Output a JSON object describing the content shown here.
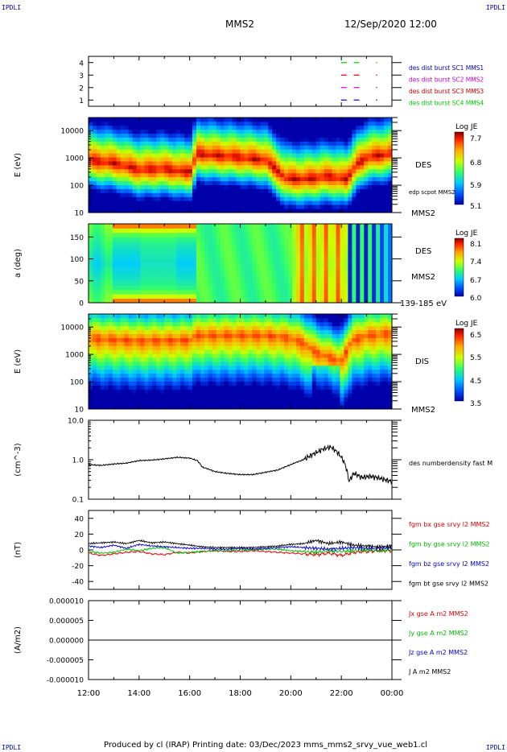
{
  "header": {
    "corner_left_top": "IPDLI",
    "corner_right_top": "IPDLI",
    "corner_left_bottom": "IPDLI",
    "corner_right_bottom": "IPDLI",
    "spacecraft": "MMS2",
    "datetime": "12/Sep/2020 12:00"
  },
  "footer": {
    "text": "Produced by cl (IRAP)   Printing date: 03/Dec/2023   mms_mms2_srvy_vue_web1.cl"
  },
  "colors": {
    "mms1": "#0000cc",
    "mms2": "#cc00cc",
    "mms3": "#cc0000",
    "mms4": "#00cc00",
    "bx": "#dd0000",
    "by": "#00bb00",
    "bz": "#0000cc",
    "bt": "#000000"
  },
  "chart_data": [
    {
      "type": "line",
      "name": "burst-flags",
      "ylim": [
        0.5,
        4.5
      ],
      "yticks": [
        "1",
        "2",
        "3",
        "4"
      ],
      "legend": [
        {
          "label": "des dist burst SC1 MMS1",
          "color": "#0000cc"
        },
        {
          "label": "des dist burst SC2 MMS2",
          "color": "#cc00cc"
        },
        {
          "label": "des dist burst SC3 MMS3",
          "color": "#cc0000"
        },
        {
          "label": "des dist burst SC4 MMS4",
          "color": "#00cc00"
        }
      ],
      "series": [
        {
          "level": 4,
          "color": "#00cc00",
          "x": [
            22.1,
            22.6,
            23.4
          ]
        },
        {
          "level": 3,
          "color": "#cc0000",
          "x": [
            22.1,
            22.6,
            23.4
          ]
        },
        {
          "level": 2,
          "color": "#cc00cc",
          "x": [
            22.1,
            22.6,
            23.4
          ]
        },
        {
          "level": 1,
          "color": "#0000cc",
          "x": [
            22.1,
            22.6,
            23.4
          ]
        }
      ]
    },
    {
      "type": "heatmap",
      "name": "des-energy",
      "ylabel": "E (eV)",
      "yscale": "log",
      "ylim": [
        10,
        30000
      ],
      "yticks": [
        "10",
        "100",
        "1000",
        "10000"
      ],
      "label_right": "DES",
      "label_right2": "edp scpot MMS2",
      "label_bottom": "MMS2",
      "colorbar": {
        "title": "Log JE",
        "ticks": [
          "7.7",
          "6.8",
          "5.9",
          "5.1"
        ],
        "min": 5.1,
        "max": 7.7
      }
    },
    {
      "type": "heatmap",
      "name": "des-pitch",
      "ylabel": "a (deg)",
      "ylim": [
        0,
        180
      ],
      "yticks": [
        "0",
        "50",
        "100",
        "150"
      ],
      "label_right": "DES",
      "label_right2": "MMS2",
      "label_bottom": "139-185 eV",
      "colorbar": {
        "title": "Log JE",
        "ticks": [
          "8.1",
          "7.4",
          "6.7",
          "6.0"
        ],
        "min": 6.0,
        "max": 8.1
      }
    },
    {
      "type": "heatmap",
      "name": "dis-energy",
      "ylabel": "E (eV)",
      "yscale": "log",
      "ylim": [
        10,
        30000
      ],
      "yticks": [
        "10",
        "100",
        "1000",
        "10000"
      ],
      "label_right": "DIS",
      "label_bottom": "MMS2",
      "colorbar": {
        "title": "Log JE",
        "ticks": [
          "6.5",
          "5.5",
          "4.5",
          "3.5"
        ],
        "min": 3.5,
        "max": 6.5
      }
    },
    {
      "type": "line",
      "name": "density",
      "ylabel": "(cm^-3)",
      "yscale": "log",
      "ylim": [
        0.1,
        10
      ],
      "yticks": [
        "0.1",
        "1.0",
        "10.0"
      ],
      "legend": [
        {
          "label": "des numberdensity fast M",
          "color": "#000000"
        }
      ],
      "series": [
        {
          "name": "des numberdensity fast M",
          "x": [
            12.0,
            12.5,
            13.0,
            13.5,
            14.0,
            14.5,
            15.0,
            15.5,
            16.0,
            16.3,
            16.5,
            17.0,
            17.5,
            18.0,
            18.5,
            19.0,
            19.5,
            20.0,
            20.5,
            21.0,
            21.3,
            21.6,
            21.9,
            22.1,
            22.3,
            22.5,
            22.8,
            23.2,
            23.6,
            24.0
          ],
          "y": [
            0.75,
            0.72,
            0.78,
            0.82,
            0.95,
            0.98,
            1.05,
            1.15,
            1.1,
            0.95,
            0.65,
            0.5,
            0.45,
            0.42,
            0.42,
            0.48,
            0.55,
            0.75,
            1.0,
            1.5,
            1.9,
            2.1,
            1.4,
            0.9,
            0.28,
            0.45,
            0.36,
            0.38,
            0.33,
            0.28
          ]
        }
      ]
    },
    {
      "type": "line",
      "name": "magnetic-field",
      "ylabel": "(nT)",
      "ylim": [
        -50,
        50
      ],
      "yticks": [
        "-40",
        "-20",
        "0",
        "20",
        "40"
      ],
      "legend": [
        {
          "label": "fgm bx gse srvy l2 MMS2",
          "color": "#dd0000"
        },
        {
          "label": "fgm by gse srvy l2 MMS2",
          "color": "#00bb00"
        },
        {
          "label": "fgm bz gse srvy l2 MMS2",
          "color": "#0000cc"
        },
        {
          "label": "fgm bt gse srvy l2 MMS2",
          "color": "#000000"
        }
      ],
      "x": [
        12.0,
        12.5,
        13.0,
        13.5,
        14.0,
        14.5,
        15.0,
        15.5,
        16.0,
        16.5,
        17.0,
        17.5,
        18.0,
        18.5,
        19.0,
        19.5,
        20.0,
        20.5,
        21.0,
        21.5,
        22.0,
        22.5,
        23.0,
        23.5,
        24.0
      ],
      "series": [
        {
          "name": "bx",
          "color": "#dd0000",
          "y": [
            -4,
            -7,
            -5,
            -3,
            -2,
            -5,
            -6,
            -3,
            -4,
            -2,
            -1,
            -2,
            -2,
            -1,
            -2,
            -3,
            -4,
            -5,
            -6,
            -4,
            -7,
            -3,
            -2,
            -1,
            -1
          ]
        },
        {
          "name": "by",
          "color": "#00bb00",
          "y": [
            -2,
            -4,
            -3,
            1,
            -1,
            2,
            3,
            -4,
            -3,
            -2,
            -1,
            -1,
            0,
            0,
            1,
            1,
            -1,
            -2,
            -3,
            -1,
            -2,
            -1,
            0,
            -1,
            0
          ]
        },
        {
          "name": "bz",
          "color": "#0000cc",
          "y": [
            5,
            3,
            6,
            2,
            7,
            5,
            4,
            3,
            2,
            2,
            1,
            1,
            2,
            1,
            2,
            3,
            4,
            3,
            2,
            1,
            2,
            3,
            2,
            2,
            3
          ]
        },
        {
          "name": "bt",
          "color": "#000000",
          "y": [
            8,
            9,
            10,
            8,
            12,
            9,
            10,
            8,
            6,
            4,
            3,
            3,
            3,
            3,
            4,
            5,
            7,
            8,
            12,
            8,
            10,
            6,
            5,
            4,
            5
          ]
        }
      ]
    },
    {
      "type": "line",
      "name": "current-density",
      "ylabel": "(A/m2)",
      "ylim": [
        -1e-05,
        1e-05
      ],
      "yticks": [
        "-0.000010",
        "-0.000005",
        "0.000000",
        "0.000005",
        "0.000010"
      ],
      "legend": [
        {
          "label": "Jx gse A m2 MMS2",
          "color": "#dd0000"
        },
        {
          "label": "Jy gse A m2 MMS2",
          "color": "#00bb00"
        },
        {
          "label": "Jz gse A m2 MMS2",
          "color": "#0000cc"
        },
        {
          "label": "J A m2 MMS2",
          "color": "#000000"
        }
      ],
      "series": [
        {
          "name": "J",
          "x": [
            12,
            24
          ],
          "y": [
            0,
            0
          ]
        }
      ]
    }
  ],
  "time_axis": {
    "range_hours": [
      12,
      24
    ],
    "tick_labels": [
      "12:00",
      "14:00",
      "16:00",
      "18:00",
      "20:00",
      "22:00",
      "00:00"
    ]
  }
}
